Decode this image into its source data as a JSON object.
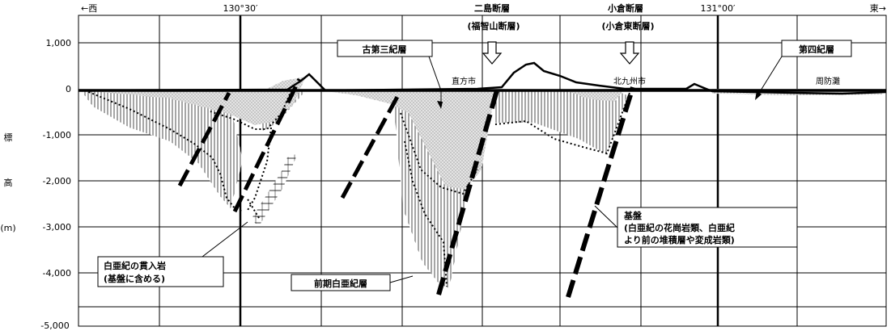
{
  "directions": {
    "west": "←西",
    "east": "東→"
  },
  "longitudes": [
    "130°30′",
    "131°00′"
  ],
  "elevation_ticks": [
    "1,000",
    "0",
    "-1,000",
    "-2,000",
    "-3,000",
    "-4,000",
    "-5,000"
  ],
  "axis": {
    "label_chars": [
      "標",
      "高"
    ],
    "unit": "(m)"
  },
  "faults": {
    "futashima": [
      "二島断層",
      "(福智山断層)"
    ],
    "kokura": [
      "小倉断層",
      "(小倉東断層)"
    ]
  },
  "places": {
    "nogata": "直方市",
    "kitakyushu": "北九州市",
    "suonada": "周防灘"
  },
  "formations": {
    "paleogene": "古第三紀層",
    "quaternary": "第四紀層",
    "early_cretaceous": "前期白亜紀層",
    "intrusive": [
      "白亜紀の貫入岩",
      "(基盤に含める)"
    ],
    "basement": [
      "基盤",
      "(白亜紀の花崗岩類、白亜紀",
      "より前の堆積層や変成岩類)"
    ]
  },
  "colors": {
    "line": "#000000",
    "background": "#ffffff",
    "fill_paleogene": "#dcdcdc"
  }
}
